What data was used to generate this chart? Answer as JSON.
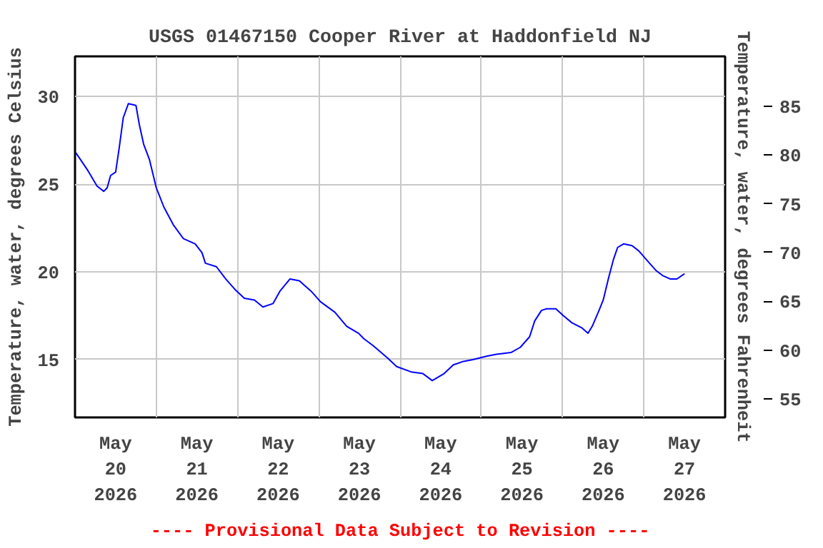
{
  "chart_data": {
    "type": "line",
    "title": "USGS 01467150 Cooper River at Haddonfield NJ",
    "ylabel": "Temperature, water, degrees Celsius",
    "y2label": "Temperature, water, degrees Fahrenheit",
    "annotations": [
      "---- Provisional Data Subject to Revision ----"
    ],
    "x": [
      "2026-05-20T00:15",
      "2026-05-20T03:45",
      "2026-05-20T06:30",
      "2026-05-20T08:30",
      "2026-05-20T09:30",
      "2026-05-20T10:30",
      "2026-05-20T12:00",
      "2026-05-20T13:00",
      "2026-05-20T14:15",
      "2026-05-20T15:45",
      "2026-05-20T18:00",
      "2026-05-20T19:00",
      "2026-05-20T20:15",
      "2026-05-20T22:00",
      "2026-05-21T00:00",
      "2026-05-21T02:15",
      "2026-05-21T05:00",
      "2026-05-21T08:00",
      "2026-05-21T11:30",
      "2026-05-21T13:30",
      "2026-05-21T14:30",
      "2026-05-21T17:45",
      "2026-05-21T20:30",
      "2026-05-21T23:15",
      "2026-05-22T02:00",
      "2026-05-22T05:00",
      "2026-05-22T07:30",
      "2026-05-22T10:30",
      "2026-05-22T12:30",
      "2026-05-22T15:30",
      "2026-05-22T18:15",
      "2026-05-22T21:45",
      "2026-05-23T00:30",
      "2026-05-23T04:45",
      "2026-05-23T08:15",
      "2026-05-23T11:45",
      "2026-05-23T13:15",
      "2026-05-23T16:00",
      "2026-05-23T20:15",
      "2026-05-23T23:00",
      "2026-05-24T03:15",
      "2026-05-24T06:45",
      "2026-05-24T09:30",
      "2026-05-24T13:00",
      "2026-05-24T15:45",
      "2026-05-24T18:45",
      "2026-05-24T21:30",
      "2026-05-25T01:45",
      "2026-05-25T04:30",
      "2026-05-25T08:45",
      "2026-05-25T11:30",
      "2026-05-25T14:15",
      "2026-05-25T15:45",
      "2026-05-25T17:45",
      "2026-05-25T19:15",
      "2026-05-25T22:00",
      "2026-05-26T00:15",
      "2026-05-26T02:45",
      "2026-05-26T05:45",
      "2026-05-26T07:30",
      "2026-05-26T08:45",
      "2026-05-26T10:45",
      "2026-05-26T12:00",
      "2026-05-26T13:30",
      "2026-05-26T15:00",
      "2026-05-26T16:15",
      "2026-05-26T18:00",
      "2026-05-26T20:30",
      "2026-05-26T22:30",
      "2026-05-27T00:45",
      "2026-05-27T03:30",
      "2026-05-27T05:30",
      "2026-05-27T07:45",
      "2026-05-27T09:45",
      "2026-05-27T12:00"
    ],
    "series": [
      {
        "color": "#0000ff",
        "values": [
          26.8,
          25.8,
          24.9,
          24.6,
          24.8,
          25.5,
          25.7,
          27.0,
          28.8,
          29.6,
          29.5,
          28.4,
          27.3,
          26.4,
          24.8,
          23.7,
          22.7,
          21.9,
          21.6,
          21.1,
          20.5,
          20.3,
          19.6,
          19.0,
          18.5,
          18.4,
          18.0,
          18.2,
          18.9,
          19.6,
          19.5,
          18.9,
          18.3,
          17.7,
          16.9,
          16.5,
          16.2,
          15.8,
          15.1,
          14.6,
          14.3,
          14.2,
          13.8,
          14.2,
          14.7,
          14.9,
          15.0,
          15.2,
          15.3,
          15.4,
          15.7,
          16.3,
          17.2,
          17.8,
          17.9,
          17.9,
          17.5,
          17.1,
          16.8,
          16.5,
          16.9,
          17.8,
          18.4,
          19.6,
          20.7,
          21.4,
          21.6,
          21.5,
          21.2,
          20.7,
          20.1,
          19.8,
          19.6,
          19.6,
          19.9
        ]
      }
    ],
    "xlim": [
      "2026-05-20T00:00",
      "2026-05-28T00:00"
    ],
    "xticks": [
      {
        "value": "2026-05-20T12:00",
        "label": "May\n20\n2026"
      },
      {
        "value": "2026-05-21T00:00",
        "label": null
      },
      {
        "value": "2026-05-21T12:00",
        "label": "May\n21\n2026"
      },
      {
        "value": "2026-05-22T00:00",
        "label": null
      },
      {
        "value": "2026-05-22T12:00",
        "label": "May\n22\n2026"
      },
      {
        "value": "2026-05-23T00:00",
        "label": null
      },
      {
        "value": "2026-05-23T12:00",
        "label": "May\n23\n2026"
      },
      {
        "value": "2026-05-24T00:00",
        "label": null
      },
      {
        "value": "2026-05-24T12:00",
        "label": "May\n24\n2026"
      },
      {
        "value": "2026-05-25T00:00",
        "label": null
      },
      {
        "value": "2026-05-25T12:00",
        "label": "May\n25\n2026"
      },
      {
        "value": "2026-05-26T00:00",
        "label": null
      },
      {
        "value": "2026-05-26T12:00",
        "label": "May\n26\n2026"
      },
      {
        "value": "2026-05-27T00:00",
        "label": null
      },
      {
        "value": "2026-05-27T12:00",
        "label": "May\n27\n2026"
      }
    ],
    "ylim": [
      11.7,
      32.3
    ],
    "yticks": [
      15,
      20,
      25,
      30
    ],
    "y2lim": [
      53.1,
      90.1
    ],
    "y2ticks": [
      55,
      60,
      65,
      70,
      75,
      80,
      85
    ],
    "grid": true
  }
}
